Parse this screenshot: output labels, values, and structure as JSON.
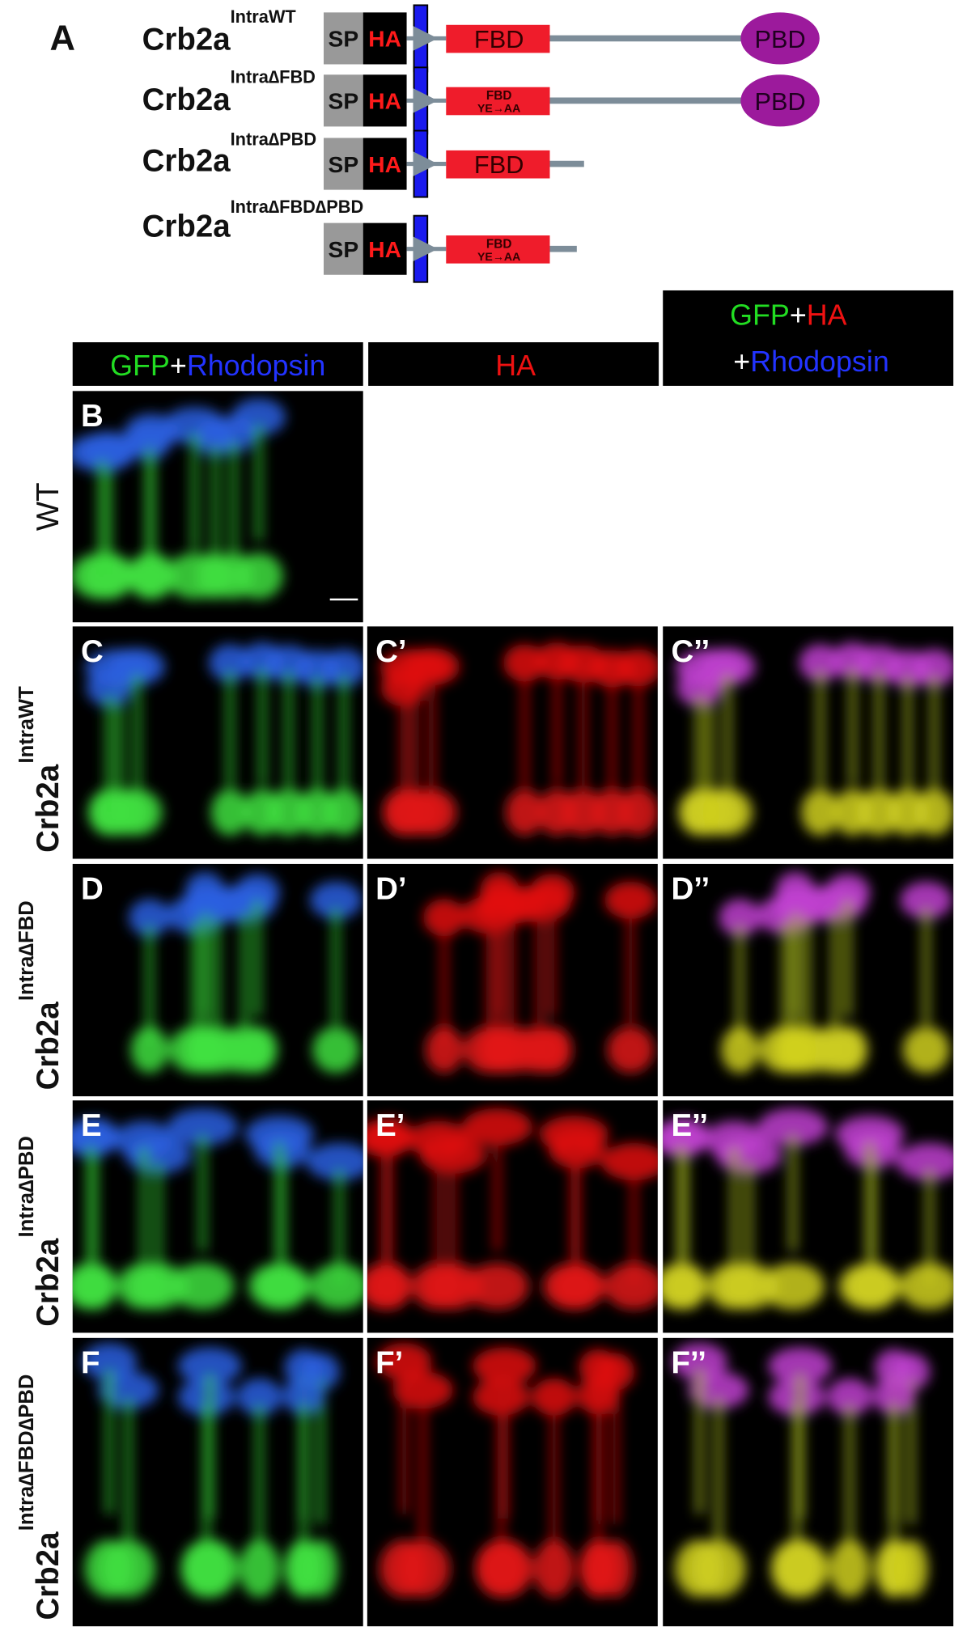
{
  "panel_a": {
    "label": "A",
    "constructs": [
      {
        "name": "Crb2a",
        "superscript": "IntraWT",
        "domains": {
          "sp": "SP",
          "ha": "HA",
          "fbd": "FBD",
          "pbd": "PBD"
        }
      },
      {
        "name": "Crb2a",
        "superscript": "Intra∆FBD",
        "domains": {
          "sp": "SP",
          "ha": "HA",
          "fbd": "FBD",
          "fbd_mutation": "YE→AA",
          "pbd": "PBD"
        }
      },
      {
        "name": "Crb2a",
        "superscript": "Intra∆PBD",
        "domains": {
          "sp": "SP",
          "ha": "HA",
          "fbd": "FBD"
        }
      },
      {
        "name": "Crb2a",
        "superscript": "Intra∆FBD∆PBD",
        "domains": {
          "sp": "SP",
          "ha": "HA",
          "fbd": "FBD",
          "fbd_mutation": "YE→AA"
        }
      }
    ]
  },
  "column_headers": [
    {
      "lines": [
        [
          "GFP",
          "+",
          "Rhodopsin"
        ]
      ]
    },
    {
      "lines": [
        [
          "HA"
        ]
      ]
    },
    {
      "lines": [
        [
          "GFP",
          "+",
          "HA"
        ],
        [
          "+",
          "Rhodopsin"
        ]
      ]
    }
  ],
  "rows": [
    {
      "label": {
        "name": "WT"
      },
      "panels": [
        "B"
      ]
    },
    {
      "label": {
        "name": "Crb2a",
        "superscript": "IntraWT"
      },
      "panels": [
        "C",
        "C’",
        "C’’"
      ]
    },
    {
      "label": {
        "name": "Crb2a",
        "superscript": "Intra∆FBD"
      },
      "panels": [
        "D",
        "D’",
        "D’’"
      ]
    },
    {
      "label": {
        "name": "Crb2a",
        "superscript": "Intra∆PBD"
      },
      "panels": [
        "E",
        "E’",
        "E’’"
      ]
    },
    {
      "label": {
        "name": "Crb2a",
        "superscript": "Intra∆FBD∆PBD"
      },
      "panels": [
        "F",
        "F’",
        "F’’"
      ]
    }
  ]
}
